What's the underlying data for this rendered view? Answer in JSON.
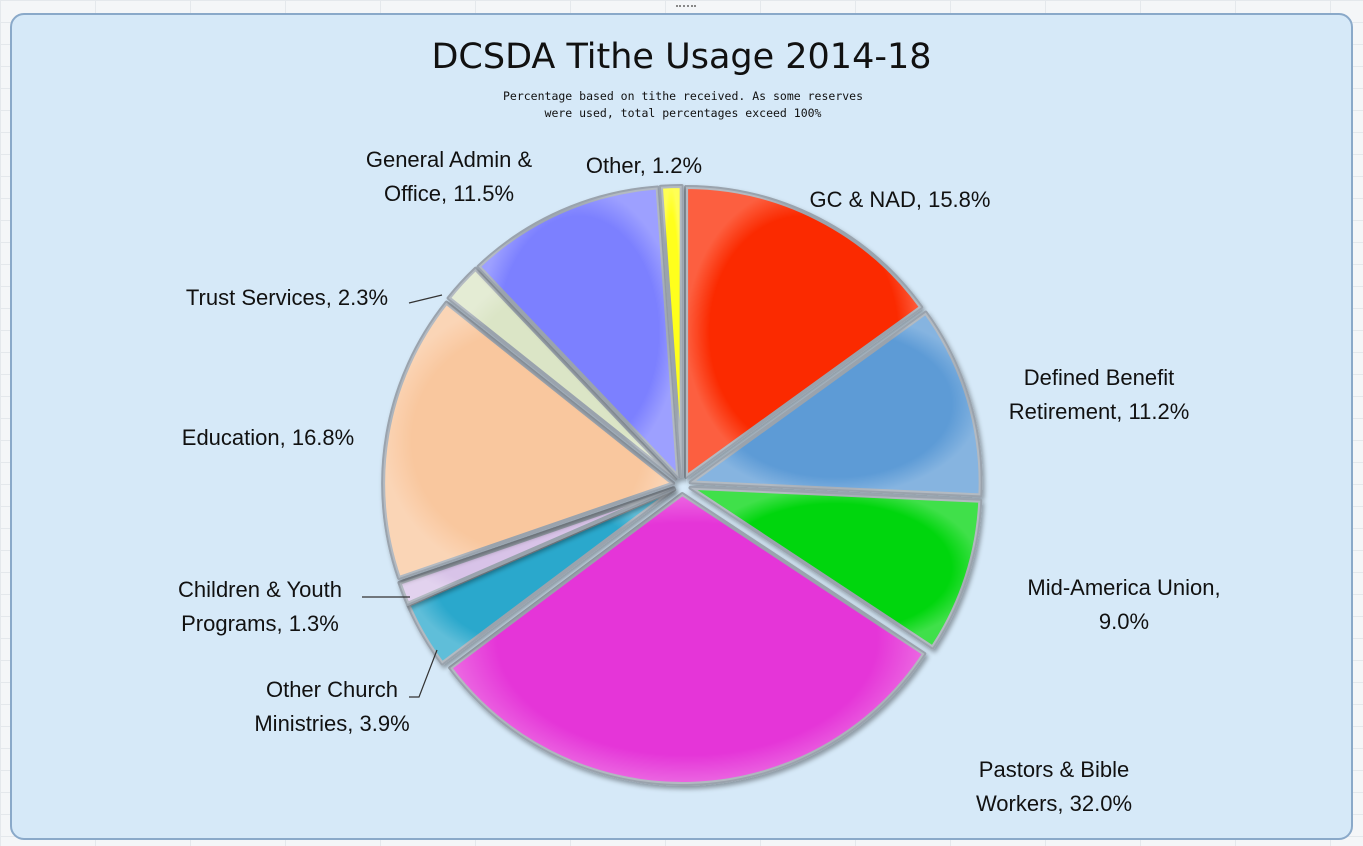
{
  "chart_data": {
    "type": "pie",
    "title": "DCSDA Tithe Usage 2014-18",
    "subtitle": "Percentage based on tithe received. As some reserves\nwere used, total percentages exceed 100%",
    "slices": [
      {
        "name": "GC & NAD",
        "value": 15.8,
        "color": "#fb2a00",
        "label_lines": [
          "GC & NAD, 15.8%"
        ]
      },
      {
        "name": "Defined Benefit Retirement",
        "value": 11.2,
        "color": "#5d9bd6",
        "label_lines": [
          "Defined Benefit",
          "Retirement, 11.2%"
        ]
      },
      {
        "name": "Mid-America Union",
        "value": 9.0,
        "color": "#00d60a",
        "label_lines": [
          "Mid-America Union,",
          "9.0%"
        ]
      },
      {
        "name": "Pastors & Bible Workers",
        "value": 32.0,
        "color": "#e535d8",
        "label_lines": [
          "Pastors & Bible",
          "Workers, 32.0%"
        ]
      },
      {
        "name": "Other Church Ministries",
        "value": 3.9,
        "color": "#2ba8cc",
        "label_lines": [
          "Other Church",
          "Ministries, 3.9%"
        ]
      },
      {
        "name": "Children & Youth Programs",
        "value": 1.3,
        "color": "#d8c3e8",
        "label_lines": [
          "Children & Youth",
          "Programs, 1.3%"
        ]
      },
      {
        "name": "Education",
        "value": 16.8,
        "color": "#f9c79e",
        "label_lines": [
          "Education, 16.8%"
        ]
      },
      {
        "name": "Trust Services",
        "value": 2.3,
        "color": "#dbe5c6",
        "label_lines": [
          "Trust Services, 2.3%"
        ]
      },
      {
        "name": "General Admin & Office",
        "value": 11.5,
        "color": "#7b80ff",
        "label_lines": [
          "General Admin &",
          "Office, 11.5%"
        ]
      },
      {
        "name": "Other",
        "value": 1.2,
        "color": "#ffff1a",
        "label_lines": [
          "Other, 1.2%"
        ]
      }
    ]
  }
}
